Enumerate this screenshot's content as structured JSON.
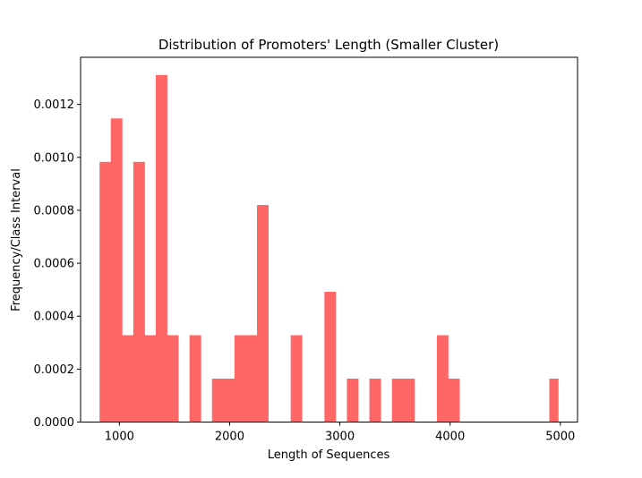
{
  "chart_data": {
    "type": "bar",
    "title": "Distribution of Promoters' Length (Smaller Cluster)",
    "xlabel": "Length of Sequences",
    "ylabel": "Frequency/Class Interval",
    "xlim": [
      648,
      5156
    ],
    "ylim": [
      0,
      0.001378
    ],
    "xticks": [
      1000,
      2000,
      3000,
      4000,
      5000
    ],
    "xtick_labels": [
      "1000",
      "2000",
      "3000",
      "4000",
      "5000"
    ],
    "yticks": [
      0.0,
      0.0002,
      0.0004,
      0.0006,
      0.0008,
      0.001,
      0.0012
    ],
    "ytick_labels": [
      "0.0000",
      "0.0002",
      "0.0004",
      "0.0006",
      "0.0008",
      "0.0010",
      "0.0012"
    ],
    "grid": false,
    "color": "#ff6666",
    "bin_edges": [
      820,
      922,
      1024,
      1126,
      1228,
      1330,
      1432,
      1534,
      1636,
      1738,
      1840,
      1942,
      2044,
      2146,
      2248,
      2350,
      2452,
      2554,
      2656,
      2758,
      2860,
      2962,
      3064,
      3166,
      3268,
      3370,
      3472,
      3574,
      3676,
      3778,
      3880,
      3982,
      4084,
      4186,
      4288,
      4390,
      4492,
      4594,
      4696,
      4798,
      4900,
      4980
    ],
    "values": [
      0.000983,
      0.001147,
      0.000328,
      0.000983,
      0.000328,
      0.001311,
      0.000328,
      0,
      0.000328,
      0,
      0.000164,
      0.000164,
      0.000328,
      0.000328,
      0.00082,
      0,
      0,
      0.000328,
      0,
      0,
      0.000492,
      0,
      0.000164,
      0,
      0.000164,
      0,
      0.000164,
      0.000164,
      0,
      0,
      0.000328,
      0.000164,
      0,
      0,
      0,
      0,
      0,
      0,
      0,
      0,
      0.000164
    ]
  }
}
